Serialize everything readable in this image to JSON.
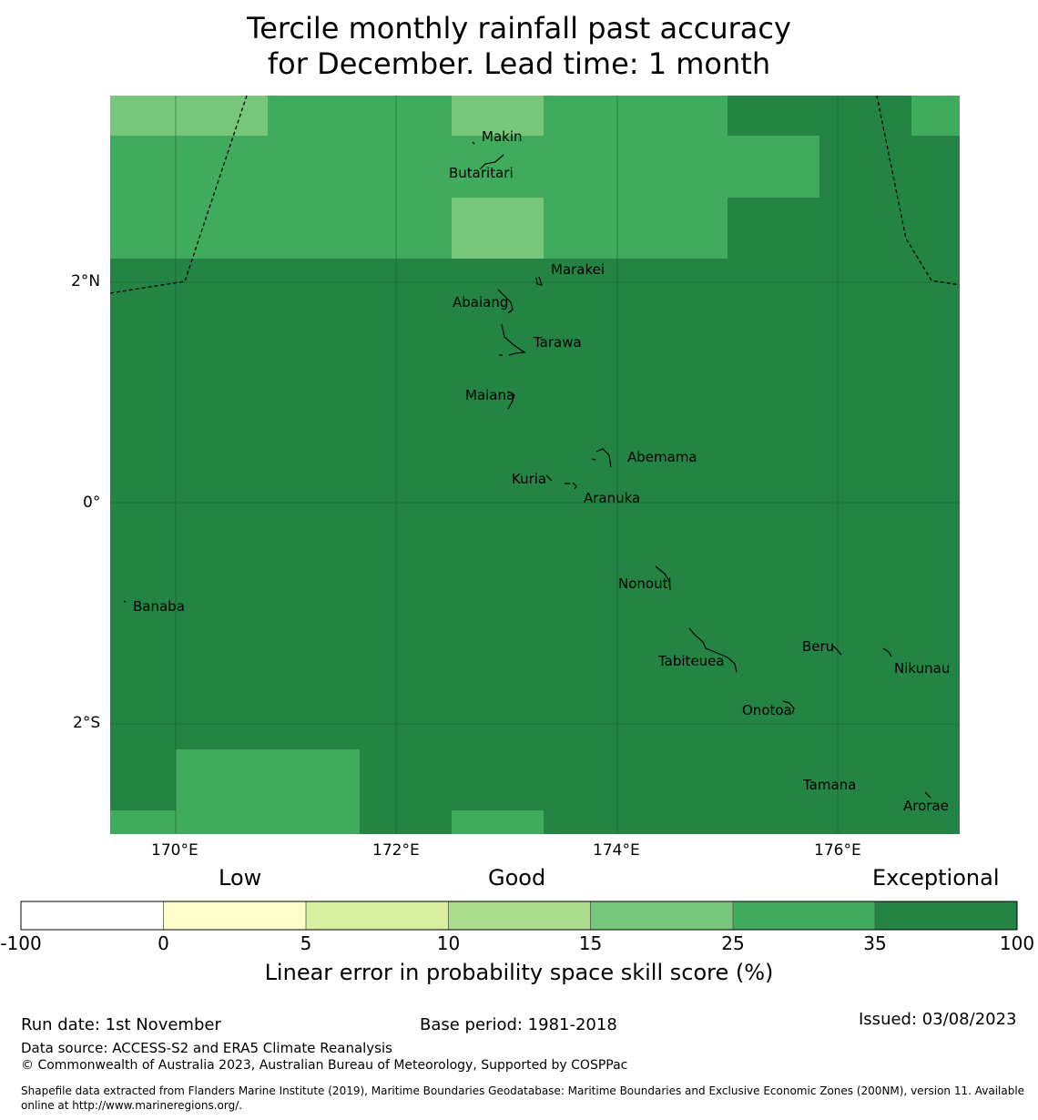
{
  "title": {
    "line1": "Tercile monthly rainfall past accuracy",
    "line2": "for December. Lead time: 1 month"
  },
  "map": {
    "lat_ticks": [
      "2°N",
      "0°",
      "2°S"
    ],
    "lon_ticks": [
      "170°E",
      "172°E",
      "174°E",
      "176°E"
    ],
    "islands": [
      "Makin",
      "Butaritari",
      "Marakei",
      "Abaiang",
      "Tarawa",
      "Maiana",
      "Abemama",
      "Kuria",
      "Aranuka",
      "Nonouti",
      "Banaba",
      "Beru",
      "Tabiteuea",
      "Nikunau",
      "Onotoa",
      "Tamana",
      "Arorae"
    ]
  },
  "colorbar": {
    "category_labels": [
      "Low",
      "Good",
      "Exceptional"
    ],
    "bins": [
      {
        "from": -100,
        "to": 0,
        "color": "#ffffff"
      },
      {
        "from": 0,
        "to": 5,
        "color": "#ffffcc"
      },
      {
        "from": 5,
        "to": 10,
        "color": "#d9f0a3"
      },
      {
        "from": 10,
        "to": 15,
        "color": "#addd8e"
      },
      {
        "from": 15,
        "to": 25,
        "color": "#78c679"
      },
      {
        "from": 25,
        "to": 35,
        "color": "#41ab5d"
      },
      {
        "from": 35,
        "to": 100,
        "color": "#238443"
      }
    ],
    "tick_labels": [
      "-100",
      "0",
      "5",
      "10",
      "15",
      "25",
      "35",
      "100"
    ],
    "label": "Linear error in probability space skill score (%)"
  },
  "footer": {
    "run_date": "Run date: 1st November",
    "base_period": "Base period: 1981-2018",
    "issued": "Issued: 03/08/2023",
    "data_source": "Data source: ACCESS-S2 and ERA5 Climate Reanalysis",
    "copyright": "© Commonwealth of Australia 2023, Australian Bureau of Meteorology, Supported by COSPPac",
    "shapefile_line1": "Shapefile data extracted from Flanders Marine Institute (2019), Maritime Boundaries Geodatabase: Maritime Boundaries and Exclusive Economic Zones (200NM), version 11. Available",
    "shapefile_line2": "online at http://www.marineregions.org/."
  },
  "colors": {
    "c15": "#78c679",
    "c25": "#41ab5d",
    "c35": "#238443"
  }
}
